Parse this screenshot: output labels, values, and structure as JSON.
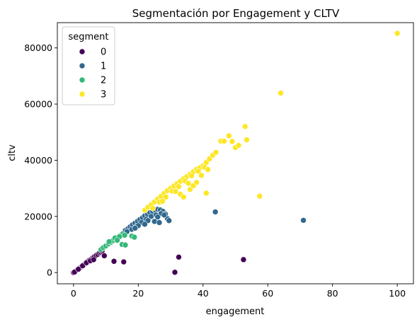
{
  "chart_data": {
    "type": "scatter",
    "title": "Segmentación por Engagement y CLTV",
    "xlabel": "engagement",
    "ylabel": "cltv",
    "xlim": [
      -5,
      105
    ],
    "ylim": [
      -4000,
      89000
    ],
    "xticks": [
      "0",
      "20",
      "40",
      "60",
      "80",
      "100"
    ],
    "yticks": [
      "0",
      "20000",
      "40000",
      "60000",
      "80000"
    ],
    "grid": false,
    "legend": {
      "title": "segment",
      "position": "top-left",
      "entries": [
        "0",
        "1",
        "2",
        "3"
      ]
    },
    "colors": {
      "0": "#440154",
      "1": "#31688e",
      "2": "#35b779",
      "3": "#fde725"
    },
    "series": [
      {
        "name": "0",
        "x": [
          0.0,
          0.5,
          1.0,
          1.3,
          1.8,
          2.2,
          2.6,
          3.0,
          3.4,
          3.8,
          4.2,
          4.6,
          5.0,
          5.5,
          6.0,
          6.5,
          7.0,
          7.5,
          8.0,
          8.4,
          8.8,
          0.3,
          1.5,
          2.8,
          4.0,
          5.2,
          6.2,
          9.5,
          12.5,
          15.5,
          31.3,
          32.5,
          52.5
        ],
        "y": [
          0,
          400,
          800,
          1100,
          1500,
          1900,
          2300,
          2700,
          3000,
          3400,
          3800,
          4100,
          4500,
          4800,
          5300,
          5700,
          6100,
          6500,
          7000,
          7300,
          7600,
          200,
          1200,
          2400,
          3500,
          4200,
          4600,
          6000,
          4000,
          3800,
          100,
          5500,
          4600
        ]
      },
      {
        "name": "1",
        "x": [
          16.0,
          16.8,
          17.5,
          18.2,
          19.0,
          19.8,
          20.5,
          21.3,
          22.0,
          22.8,
          23.6,
          24.4,
          25.2,
          26.0,
          26.8,
          27.6,
          28.4,
          29.0,
          16.5,
          18.0,
          19.5,
          21.0,
          22.5,
          24.0,
          25.5,
          27.0,
          20.0,
          23.0,
          26.0,
          19.0,
          22.0,
          25.0,
          28.0,
          26.5,
          29.5,
          43.8,
          71.0
        ],
        "y": [
          15000,
          15600,
          16300,
          17000,
          17600,
          18300,
          18900,
          19500,
          20200,
          20800,
          21300,
          21800,
          22200,
          22500,
          22300,
          21800,
          20800,
          19200,
          14600,
          15400,
          16500,
          17800,
          19000,
          20000,
          20500,
          21000,
          16700,
          18500,
          19800,
          15800,
          17200,
          18200,
          20500,
          17800,
          18500,
          21600,
          18600
        ]
      },
      {
        "name": "2",
        "x": [
          8.5,
          9.2,
          10.0,
          10.8,
          11.5,
          12.2,
          13.0,
          13.8,
          14.5,
          15.2,
          11.0,
          12.8,
          14.2,
          15.8,
          13.5,
          15.0,
          16.0,
          18.0,
          18.8
        ],
        "y": [
          8200,
          8900,
          9500,
          10200,
          10800,
          11400,
          12000,
          12600,
          13200,
          13800,
          11000,
          12300,
          12800,
          13300,
          11500,
          10000,
          9800,
          13000,
          12600
        ]
      },
      {
        "name": "3",
        "x": [
          22.0,
          23.0,
          24.0,
          25.0,
          26.0,
          27.0,
          28.0,
          29.0,
          30.0,
          31.0,
          32.0,
          33.0,
          34.0,
          35.0,
          36.0,
          37.0,
          38.0,
          39.0,
          40.0,
          41.0,
          42.0,
          43.0,
          44.0,
          45.5,
          46.5,
          48.0,
          49.0,
          50.0,
          51.0,
          53.0,
          53.5,
          24.5,
          26.5,
          28.5,
          30.5,
          32.5,
          34.5,
          36.5,
          38.5,
          40.5,
          27.5,
          31.5,
          35.5,
          39.5,
          33.0,
          36.0,
          38.0,
          41.5,
          34.0,
          37.0,
          41.0,
          57.5,
          64.0,
          100.0
        ],
        "y": [
          22200,
          23300,
          24200,
          25200,
          26200,
          27100,
          28200,
          29200,
          30000,
          30800,
          31700,
          32500,
          33400,
          34200,
          35000,
          35900,
          36800,
          37300,
          38000,
          39200,
          40500,
          41800,
          42800,
          46800,
          46800,
          48700,
          46700,
          44500,
          45300,
          52000,
          47300,
          22900,
          25100,
          26900,
          29000,
          30600,
          32600,
          34500,
          36100,
          37500,
          25400,
          28900,
          31800,
          34600,
          27900,
          29600,
          32100,
          36700,
          26900,
          30900,
          28300,
          27200,
          63900,
          85200
        ]
      }
    ]
  }
}
